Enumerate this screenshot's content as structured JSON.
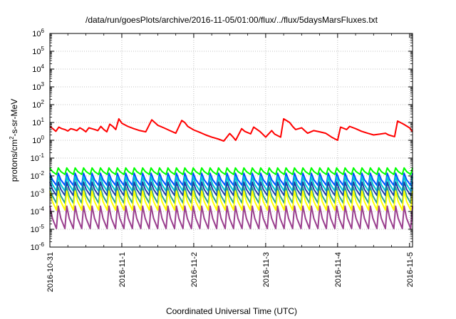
{
  "chart_data": {
    "type": "line",
    "title": "/data/run/goesPlots/archive/2016-11-05/01:00/flux/../flux/5daysMarsFluxes.txt",
    "xlabel": "Coordinated Universal Time (UTC)",
    "ylabel": {
      "prefix": "protons/cm",
      "sup": "2",
      "suffix": "-s-sr-MeV"
    },
    "y_scale": "log",
    "ylim": [
      1e-06,
      1000000.0
    ],
    "y_ticks": [
      {
        "base": "10",
        "exp": "-6",
        "value": 1e-06
      },
      {
        "base": "10",
        "exp": "-5",
        "value": 1e-05
      },
      {
        "base": "10",
        "exp": "-4",
        "value": 0.0001
      },
      {
        "base": "10",
        "exp": "-3",
        "value": 0.001
      },
      {
        "base": "10",
        "exp": "-2",
        "value": 0.01
      },
      {
        "base": "10",
        "exp": "-1",
        "value": 0.1
      },
      {
        "base": "10",
        "exp": "0",
        "value": 1
      },
      {
        "base": "10",
        "exp": "1",
        "value": 10
      },
      {
        "base": "10",
        "exp": "2",
        "value": 100
      },
      {
        "base": "10",
        "exp": "3",
        "value": 1000
      },
      {
        "base": "10",
        "exp": "4",
        "value": 10000
      },
      {
        "base": "10",
        "exp": "5",
        "value": 100000
      },
      {
        "base": "10",
        "exp": "6",
        "value": 1000000
      }
    ],
    "xlim": [
      "2016-10-31T00:00",
      "2016-11-05T01:00"
    ],
    "x_ticks": [
      {
        "label": "2016-10-31",
        "value": "2016-10-31T00:00"
      },
      {
        "label": "2016-11-1",
        "value": "2016-11-01T00:00"
      },
      {
        "label": "2016-11-2",
        "value": "2016-11-02T00:00"
      },
      {
        "label": "2016-11-3",
        "value": "2016-11-03T00:00"
      },
      {
        "label": "2016-11-4",
        "value": "2016-11-04T00:00"
      },
      {
        "label": "2016-11-5",
        "value": "2016-11-05T00:00"
      }
    ],
    "x_minor_ticks_per_day": 4,
    "grid": true,
    "legend": "none",
    "series": [
      {
        "color": "#ff0000",
        "style": "irregular-sawtooth",
        "x": [
          "2016-10-31T00:00",
          "2016-10-31T01:00",
          "2016-10-31T02:00",
          "2016-10-31T03:00",
          "2016-10-31T04:00",
          "2016-10-31T05:00",
          "2016-10-31T06:00",
          "2016-10-31T07:00",
          "2016-10-31T08:00",
          "2016-10-31T09:00",
          "2016-10-31T10:00",
          "2016-10-31T11:00",
          "2016-10-31T12:00",
          "2016-10-31T13:00",
          "2016-10-31T14:00",
          "2016-10-31T15:00",
          "2016-10-31T16:00",
          "2016-10-31T17:00",
          "2016-10-31T18:00",
          "2016-10-31T19:00",
          "2016-10-31T20:00",
          "2016-10-31T21:00",
          "2016-10-31T22:00",
          "2016-10-31T23:00",
          "2016-11-01T00:00",
          "2016-11-01T02:00",
          "2016-11-01T04:00",
          "2016-11-01T06:00",
          "2016-11-01T08:00",
          "2016-11-01T10:00",
          "2016-11-01T11:00",
          "2016-11-01T12:00",
          "2016-11-01T14:00",
          "2016-11-01T16:00",
          "2016-11-01T18:00",
          "2016-11-01T20:00",
          "2016-11-01T21:00",
          "2016-11-01T22:00",
          "2016-11-02T00:00",
          "2016-11-02T02:00",
          "2016-11-02T04:00",
          "2016-11-02T06:00",
          "2016-11-02T08:00",
          "2016-11-02T10:00",
          "2016-11-02T12:00",
          "2016-11-02T13:00",
          "2016-11-02T14:00",
          "2016-11-02T16:00",
          "2016-11-02T17:00",
          "2016-11-02T19:00",
          "2016-11-02T20:00",
          "2016-11-02T22:00",
          "2016-11-02T23:00",
          "2016-11-03T00:00",
          "2016-11-03T02:00",
          "2016-11-03T03:00",
          "2016-11-03T05:00",
          "2016-11-03T06:00",
          "2016-11-03T08:00",
          "2016-11-03T09:00",
          "2016-11-03T10:00",
          "2016-11-03T12:00",
          "2016-11-03T13:00",
          "2016-11-03T14:00",
          "2016-11-03T16:00",
          "2016-11-03T18:00",
          "2016-11-03T20:00",
          "2016-11-03T22:00",
          "2016-11-04T00:00",
          "2016-11-04T01:00",
          "2016-11-04T03:00",
          "2016-11-04T04:00",
          "2016-11-04T06:00",
          "2016-11-04T08:00",
          "2016-11-04T10:00",
          "2016-11-04T12:00",
          "2016-11-04T14:00",
          "2016-11-04T16:00",
          "2016-11-04T17:00",
          "2016-11-04T19:00",
          "2016-11-04T20:00",
          "2016-11-04T22:00",
          "2016-11-05T00:00",
          "2016-11-05T01:00"
        ],
        "values": [
          6,
          4.5,
          3.2,
          5.5,
          4.5,
          4,
          3.3,
          4.5,
          4,
          3.5,
          5,
          4,
          3,
          5,
          4.5,
          4,
          3.5,
          6,
          4,
          3,
          8,
          6,
          4,
          16,
          9,
          6,
          4.5,
          3.5,
          3,
          14,
          10,
          7,
          5,
          3.5,
          2.5,
          13,
          10,
          6,
          3.8,
          2.8,
          2,
          1.5,
          1.2,
          0.9,
          2.4,
          1.6,
          1.0,
          4.5,
          3.2,
          2.3,
          5.5,
          3.2,
          2.2,
          1.5,
          3.5,
          2.2,
          1.5,
          16,
          10,
          6,
          4,
          5,
          3.5,
          2.5,
          3.5,
          3,
          2.5,
          1.5,
          1.0,
          5.5,
          4,
          6,
          4.5,
          3.2,
          2.5,
          2,
          2.2,
          2.5,
          2,
          1.6,
          12,
          8,
          5,
          3
        ]
      },
      {
        "color": "#00ff00",
        "style": "regular-sawtooth",
        "peak": 0.028,
        "trough": 0.012,
        "cycles": 43
      },
      {
        "color": "#0050ff",
        "style": "regular-sawtooth",
        "peak": 0.014,
        "trough": 0.003,
        "cycles": 43
      },
      {
        "color": "#00c8d2",
        "style": "regular-sawtooth",
        "peak": 0.009,
        "trough": 0.0014,
        "cycles": 43
      },
      {
        "color": "#1f3fa8",
        "style": "regular-sawtooth",
        "peak": 0.0045,
        "trough": 0.0008,
        "cycles": 43
      },
      {
        "color": "#2aa38c",
        "style": "regular-sawtooth",
        "peak": 0.0022,
        "trough": 0.0003,
        "cycles": 43
      },
      {
        "color": "#ffff00",
        "style": "regular-sawtooth",
        "peak": 0.0014,
        "trough": 0.00012,
        "cycles": 43
      },
      {
        "color": "#9a3f8e",
        "style": "regular-sawtooth",
        "peak": 0.0002,
        "trough": 1.1e-05,
        "cycles": 43
      }
    ]
  }
}
